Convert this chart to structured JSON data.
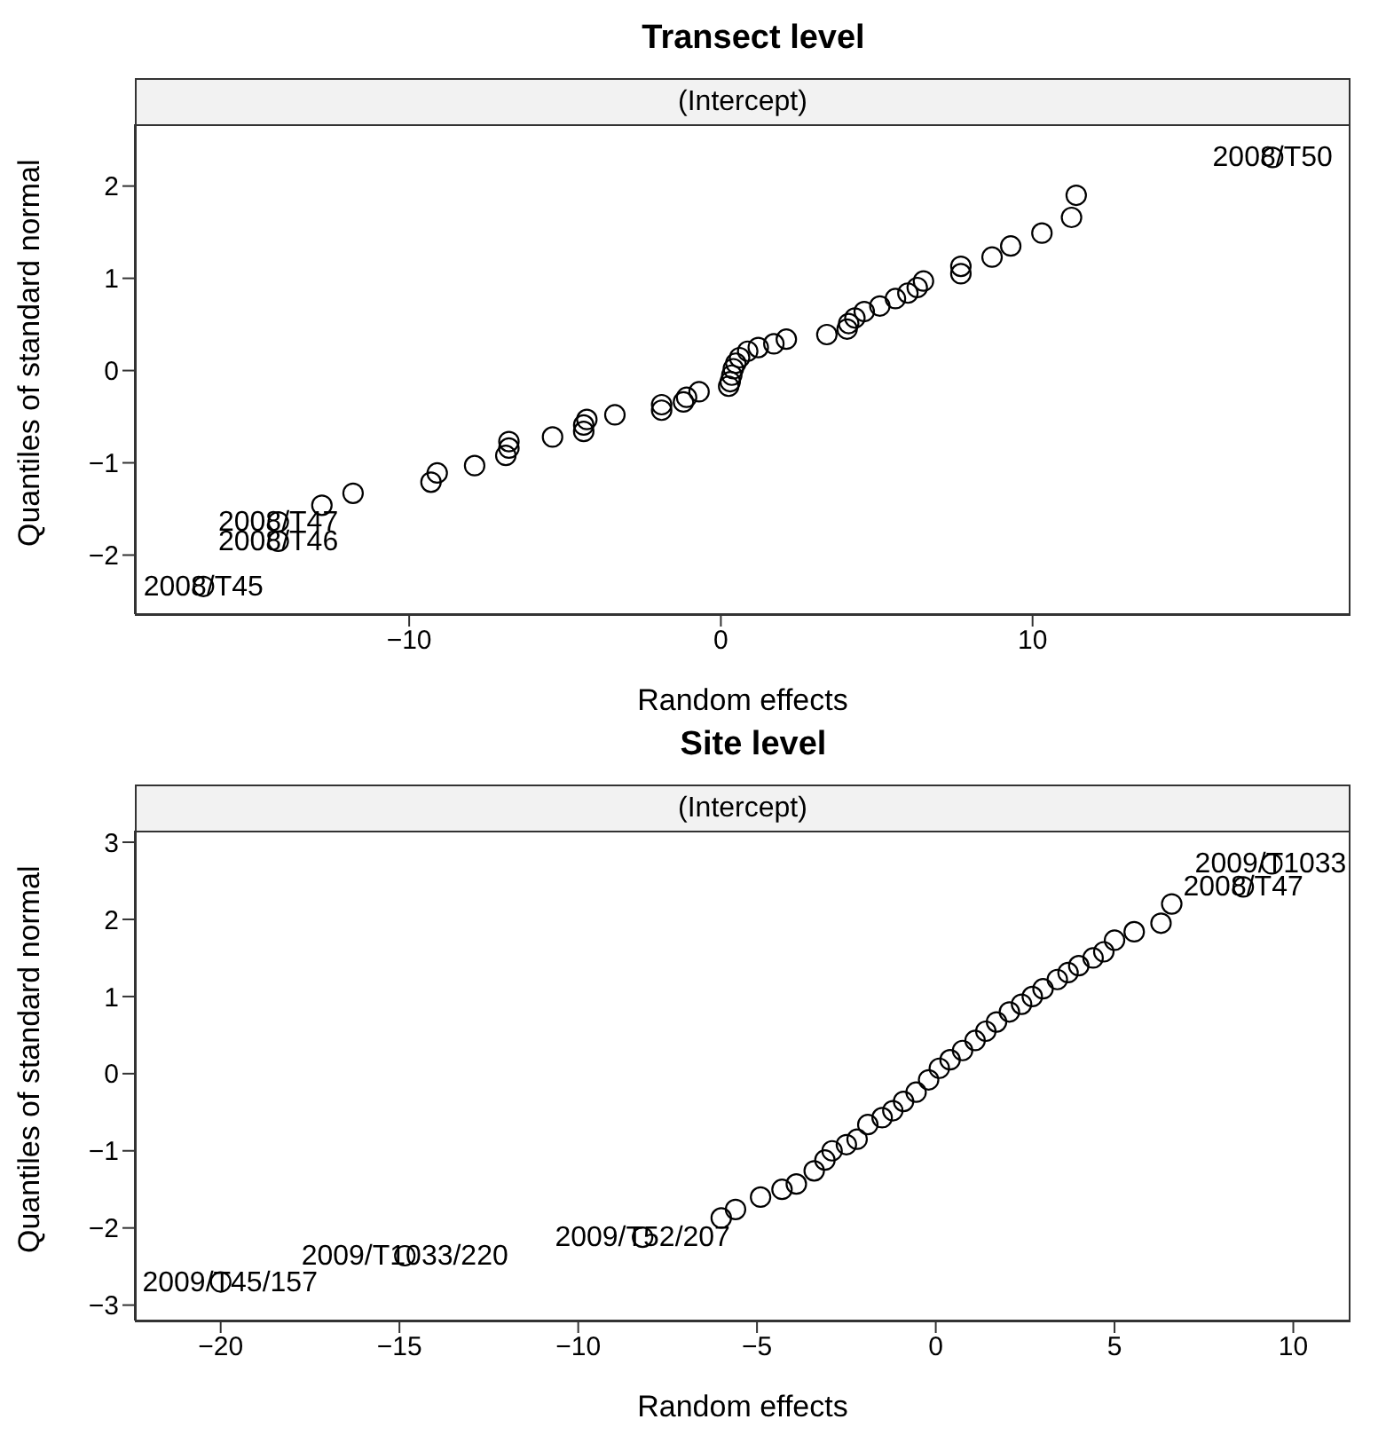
{
  "chart_data": [
    {
      "type": "scatter",
      "title": "Transect level",
      "subtitle": "(Intercept)",
      "xlabel": "Random effects",
      "ylabel": "Quantiles of standard normal",
      "marker": "circle",
      "grid": false,
      "xlim": [
        -18.8,
        20.2
      ],
      "xticks": [
        -10,
        0,
        10
      ],
      "ylim": [
        -2.64,
        2.67
      ],
      "yticks": [
        -2,
        -1,
        0,
        1,
        2
      ],
      "series": [
        {
          "color": "#000000",
          "x": [
            -16.6,
            -14.2,
            -14.2,
            -12.8,
            -11.8,
            -9.3,
            -9.1,
            -7.9,
            -6.9,
            -6.8,
            -6.8,
            -5.4,
            -4.4,
            -4.4,
            -4.3,
            -3.4,
            -1.9,
            -1.9,
            -1.2,
            -1.1,
            -0.7,
            0.25,
            0.3,
            0.35,
            0.4,
            0.48,
            0.6,
            0.86,
            1.2,
            1.7,
            2.1,
            3.4,
            4.05,
            4.1,
            4.3,
            4.6,
            5.1,
            5.6,
            6.0,
            6.3,
            6.5,
            7.7,
            7.7,
            8.7,
            9.3,
            10.3,
            11.25,
            11.4,
            17.7
          ],
          "values": [
            -2.34,
            -1.85,
            -1.64,
            -1.46,
            -1.33,
            -1.21,
            -1.11,
            -1.03,
            -0.92,
            -0.84,
            -0.77,
            -0.72,
            -0.66,
            -0.59,
            -0.53,
            -0.48,
            -0.43,
            -0.37,
            -0.34,
            -0.29,
            -0.23,
            -0.17,
            -0.12,
            -0.05,
            0.02,
            0.08,
            0.14,
            0.21,
            0.25,
            0.29,
            0.34,
            0.39,
            0.45,
            0.51,
            0.57,
            0.64,
            0.7,
            0.78,
            0.84,
            0.9,
            0.97,
            1.05,
            1.13,
            1.23,
            1.35,
            1.49,
            1.66,
            1.9,
            2.31
          ]
        }
      ],
      "annotations": [
        {
          "text": "2008/T50",
          "x": 17.7,
          "y": 2.31
        },
        {
          "text": "2008/T47",
          "x": -14.2,
          "y": -1.64
        },
        {
          "text": "2008/T46",
          "x": -14.2,
          "y": -1.85
        },
        {
          "text": "2008/T45",
          "x": -16.6,
          "y": -2.34
        }
      ]
    },
    {
      "type": "scatter",
      "title": "Site level",
      "subtitle": "(Intercept)",
      "xlabel": "Random effects",
      "ylabel": "Quantiles of standard normal",
      "marker": "circle",
      "grid": false,
      "xlim": [
        -22.4,
        11.6
      ],
      "xticks": [
        -20,
        -15,
        -10,
        -5,
        0,
        5,
        10
      ],
      "ylim": [
        -3.2,
        3.15
      ],
      "yticks": [
        -3,
        -2,
        -1,
        0,
        1,
        2,
        3
      ],
      "series": [
        {
          "color": "#000000",
          "x": [
            -20.0,
            -14.85,
            -8.2,
            -6.0,
            -5.6,
            -4.9,
            -4.3,
            -3.9,
            -3.4,
            -3.1,
            -2.9,
            -2.5,
            -2.2,
            -1.9,
            -1.5,
            -1.2,
            -0.9,
            -0.55,
            -0.2,
            0.1,
            0.4,
            0.75,
            1.1,
            1.4,
            1.7,
            2.06,
            2.4,
            2.7,
            3.0,
            3.4,
            3.7,
            4.0,
            4.4,
            4.7,
            5.0,
            5.55,
            6.3,
            6.6,
            8.6,
            9.4
          ],
          "values": [
            -2.7,
            -2.36,
            -2.12,
            -1.87,
            -1.76,
            -1.6,
            -1.5,
            -1.43,
            -1.26,
            -1.12,
            -1.0,
            -0.92,
            -0.85,
            -0.66,
            -0.57,
            -0.48,
            -0.36,
            -0.24,
            -0.08,
            0.07,
            0.18,
            0.3,
            0.43,
            0.55,
            0.67,
            0.8,
            0.9,
            1.0,
            1.1,
            1.22,
            1.31,
            1.4,
            1.5,
            1.58,
            1.73,
            1.84,
            1.95,
            2.2,
            2.42,
            2.72
          ]
        }
      ],
      "annotations": [
        {
          "text": "2009/T1033",
          "x": 9.4,
          "y": 2.72
        },
        {
          "text": "2008/T47",
          "x": 8.6,
          "y": 2.42
        },
        {
          "text": "2009/T52/207",
          "x": -8.2,
          "y": -2.12
        },
        {
          "text": "2009/T1033/220",
          "x": -14.85,
          "y": -2.36
        },
        {
          "text": "2009/T45/157",
          "x": -20.0,
          "y": -2.7
        }
      ]
    }
  ]
}
